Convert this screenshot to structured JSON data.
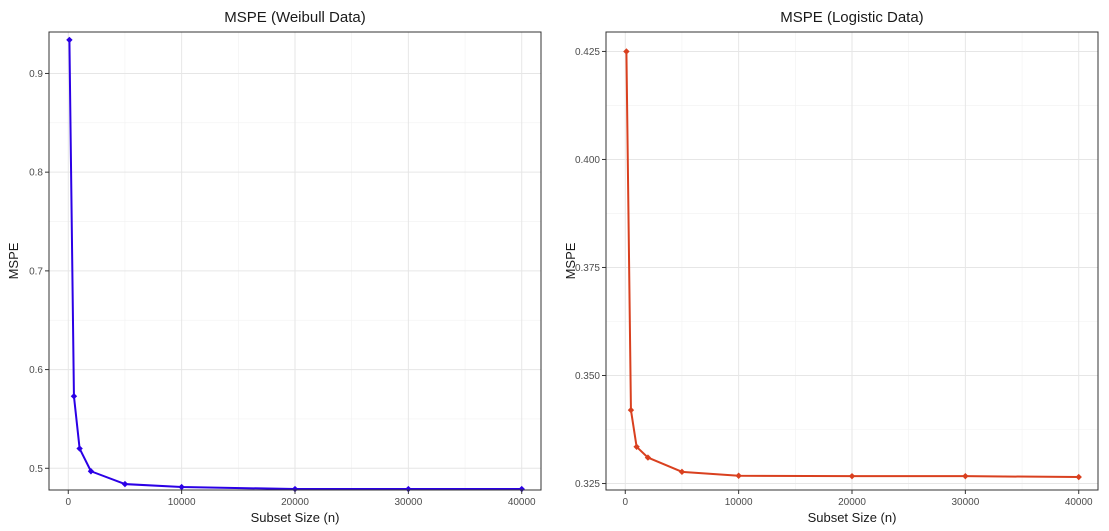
{
  "chart_data": [
    {
      "type": "line",
      "title": "MSPE (Weibull Data)",
      "xlabel": "Subset Size (n)",
      "ylabel": "MSPE",
      "color": "#2b00e6",
      "xlim": [
        -1700,
        41700
      ],
      "ylim": [
        0.478,
        0.942
      ],
      "x_ticks": [
        0,
        10000,
        20000,
        30000,
        40000
      ],
      "y_ticks": [
        0.5,
        0.6,
        0.7,
        0.8,
        0.9
      ],
      "series": [
        {
          "x": [
            100,
            500,
            1000,
            2000,
            5000,
            10000,
            20000,
            30000,
            40000
          ],
          "y": [
            0.934,
            0.573,
            0.52,
            0.497,
            0.484,
            0.481,
            0.479,
            0.479,
            0.479
          ]
        }
      ]
    },
    {
      "type": "line",
      "title": "MSPE (Logistic Data)",
      "xlabel": "Subset Size (n)",
      "ylabel": "MSPE",
      "color": "#d9401f",
      "xlim": [
        -1700,
        41700
      ],
      "ylim": [
        0.3235,
        0.4295
      ],
      "x_ticks": [
        0,
        10000,
        20000,
        30000,
        40000
      ],
      "y_ticks": [
        0.325,
        0.35,
        0.375,
        0.4,
        0.425
      ],
      "series": [
        {
          "x": [
            100,
            500,
            1000,
            2000,
            5000,
            10000,
            20000,
            30000,
            40000
          ],
          "y": [
            0.425,
            0.342,
            0.3335,
            0.331,
            0.3277,
            0.3268,
            0.3267,
            0.3267,
            0.3265
          ]
        }
      ]
    }
  ]
}
